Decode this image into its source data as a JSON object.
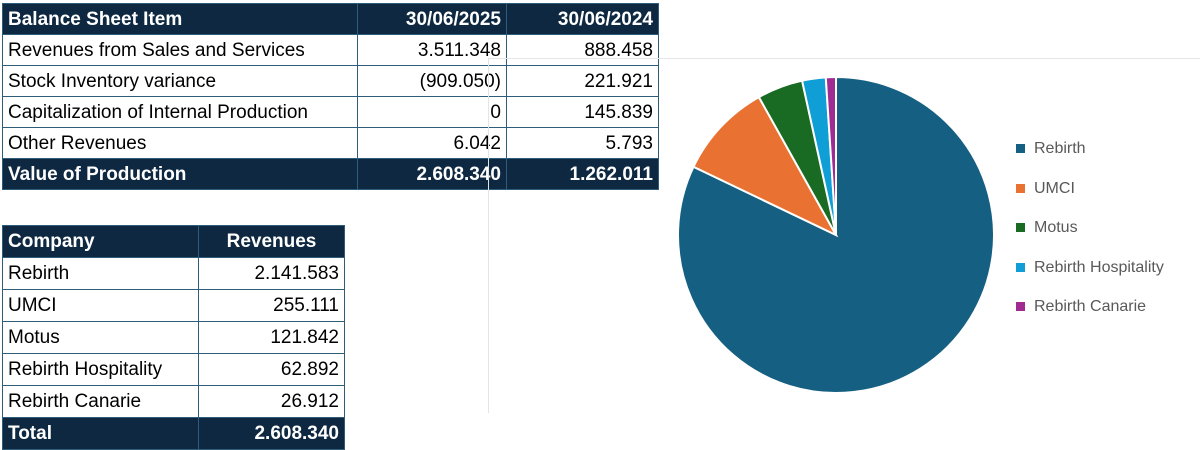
{
  "balance_sheet": {
    "headers": [
      "Balance Sheet Item",
      "30/06/2025",
      "30/06/2024"
    ],
    "rows": [
      [
        "Revenues from Sales and Services",
        "3.511.348",
        "888.458"
      ],
      [
        "Stock Inventory variance",
        "(909.050)",
        "221.921"
      ],
      [
        "Capitalization of Internal Production",
        "0",
        "145.839"
      ],
      [
        "Other Revenues",
        "6.042",
        "5.793"
      ]
    ],
    "total": [
      "Value of Production",
      "2.608.340",
      "1.262.011"
    ]
  },
  "company_revenues": {
    "headers": [
      "Company",
      "Revenues"
    ],
    "rows": [
      [
        "Rebirth",
        "2.141.583"
      ],
      [
        "UMCI",
        "255.111"
      ],
      [
        "Motus",
        "121.842"
      ],
      [
        "Rebirth Hospitality",
        "62.892"
      ],
      [
        "Rebirth Canarie",
        "26.912"
      ]
    ],
    "total": [
      "Total",
      "2.608.340"
    ]
  },
  "chart_data": {
    "type": "pie",
    "categories": [
      "Rebirth",
      "UMCI",
      "Motus",
      "Rebirth Hospitality",
      "Rebirth Canarie"
    ],
    "values": [
      2141583,
      255111,
      121842,
      62892,
      26912
    ],
    "colors": [
      "#156082",
      "#e97132",
      "#196b24",
      "#0f9ed5",
      "#a02b93"
    ],
    "legend_position": "right",
    "title": ""
  }
}
